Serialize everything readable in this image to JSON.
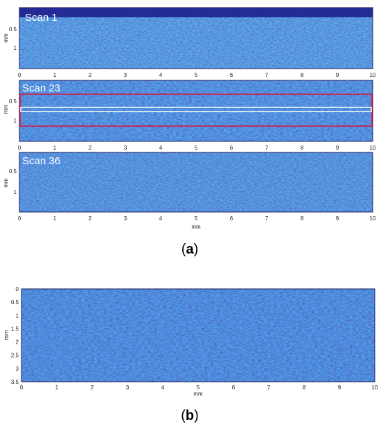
{
  "panel_a": {
    "scans": [
      {
        "label": "Scan 1",
        "y_ticks": [
          "0.5",
          "1"
        ]
      },
      {
        "label": "Scan 23",
        "y_ticks": [
          "0.5",
          "1"
        ]
      },
      {
        "label": "Scan 36",
        "y_ticks": [
          "0.5",
          "1"
        ]
      }
    ],
    "y_label": "mm",
    "x_ticks": [
      "0",
      "1",
      "2",
      "3",
      "4",
      "5",
      "6",
      "7",
      "8",
      "9",
      "10"
    ],
    "x_label": "mm",
    "caption_letter": "a"
  },
  "panel_b": {
    "y_label": "mm",
    "y_ticks": [
      "0",
      "0.5",
      "1",
      "1.5",
      "2",
      "2.5",
      "3",
      "3.5"
    ],
    "x_ticks": [
      "0",
      "1",
      "2",
      "3",
      "4",
      "5",
      "6",
      "7",
      "8",
      "9",
      "10"
    ],
    "x_label": "mm",
    "caption_letter": "b"
  },
  "colors": {
    "image_dark": "#2a31b8",
    "image_mid": "#3a56d8",
    "highlight_red": "#e0103a",
    "highlight_white": "#ffffff"
  }
}
